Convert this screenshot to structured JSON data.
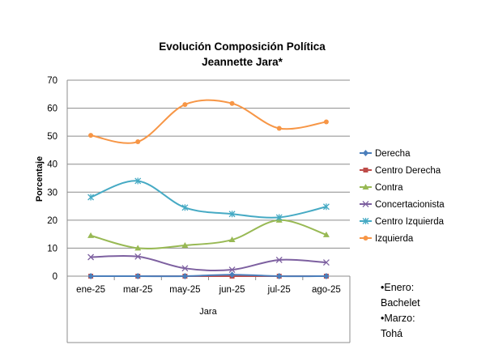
{
  "chart_data": {
    "type": "line",
    "title_line1": "Evolución Composición Política",
    "title_line2": "Jeannette Jara*",
    "xlabel": "Jara",
    "ylabel": "Porcentaje",
    "categories": [
      "ene-25",
      "mar-25",
      "may-25",
      "jun-25",
      "jul-25",
      "ago-25"
    ],
    "ylim": [
      0,
      70
    ],
    "yticks": [
      0,
      10,
      20,
      30,
      40,
      50,
      60,
      70
    ],
    "grid": true,
    "smooth": true,
    "legend_position": "right",
    "series": [
      {
        "name": "Derecha",
        "color": "#4a7ebb",
        "marker": "diamond",
        "values": [
          0,
          0,
          0,
          0.5,
          0,
          0
        ]
      },
      {
        "name": "Centro Derecha",
        "color": "#be4b48",
        "marker": "square",
        "values": [
          0,
          0,
          0,
          0,
          0,
          0
        ]
      },
      {
        "name": "Contra",
        "color": "#98b954",
        "marker": "triangle",
        "values": [
          14.5,
          10,
          11,
          13,
          20,
          14.8
        ]
      },
      {
        "name": "Concertacionista",
        "color": "#7d60a0",
        "marker": "x",
        "values": [
          6.8,
          7,
          2.8,
          2.3,
          5.8,
          4.9
        ]
      },
      {
        "name": "Centro Izquierda",
        "color": "#46aac4",
        "marker": "star",
        "values": [
          28.2,
          34,
          24.5,
          22.2,
          21,
          24.8
        ]
      },
      {
        "name": "Izquierda",
        "color": "#f79646",
        "marker": "circle",
        "values": [
          50.3,
          48,
          61.3,
          61.7,
          52.8,
          55.1
        ]
      }
    ]
  },
  "notes": {
    "line1": "•Enero:",
    "line2": "Bachelet",
    "line3": "•Marzo:",
    "line4": "Tohá"
  }
}
